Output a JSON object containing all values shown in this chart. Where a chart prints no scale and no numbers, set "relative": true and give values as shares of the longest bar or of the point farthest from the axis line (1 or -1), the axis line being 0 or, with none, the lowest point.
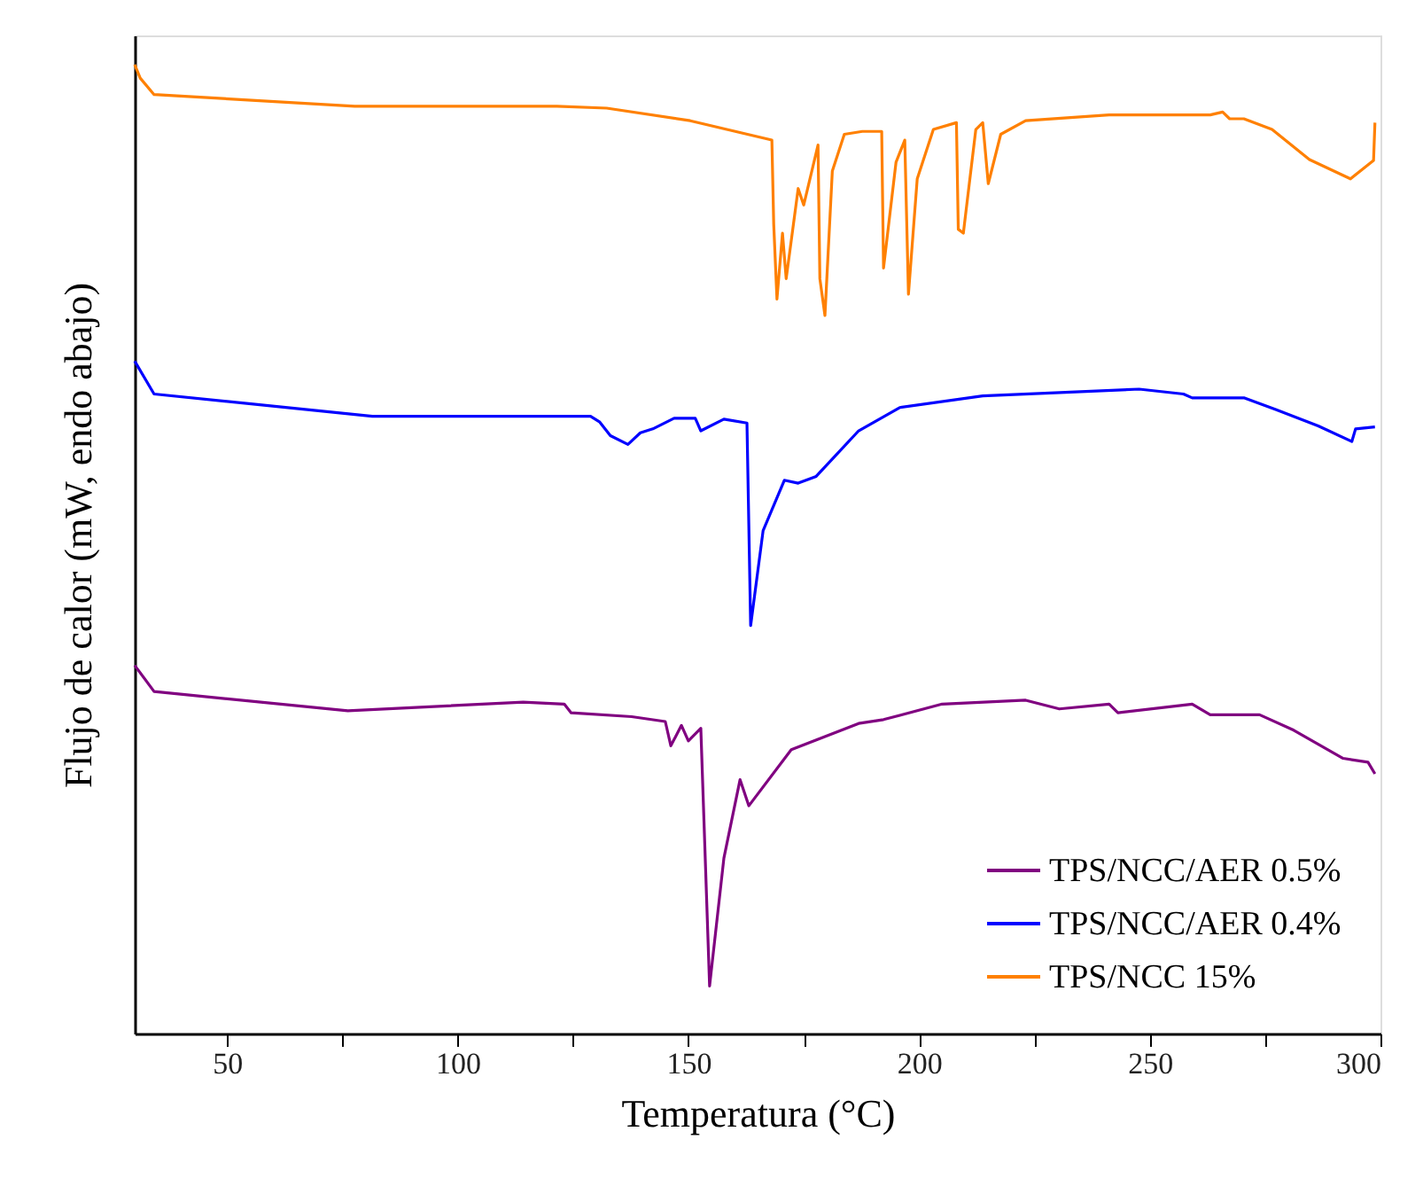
{
  "chart_data": {
    "type": "line",
    "xlabel": "Temperatura (°C)",
    "ylabel": "Flujo de calor (mW, endo abajo)",
    "relative": true,
    "xlim": [
      30,
      300
    ],
    "xticks": [
      50,
      {
        "value": 75,
        "label": null
      },
      100,
      {
        "value": 125,
        "label": null
      },
      150,
      {
        "value": 175,
        "label": null
      },
      200,
      {
        "value": 225,
        "label": null
      },
      250,
      {
        "value": 275,
        "label": null
      },
      300
    ],
    "tick_labels": "x",
    "grid": false,
    "legend": "bottom right",
    "marker": "none",
    "line_style": "solid",
    "series": [
      {
        "name": "TPS/NCC/AER 0.5%",
        "color": "#800080",
        "x": [
          30,
          34.2,
          76.2,
          114.2,
          123.1,
          124.6,
          137.7,
          145.0,
          146.2,
          148.5,
          150.0,
          152.7,
          154.6,
          157.7,
          161.2,
          163.1,
          172.3,
          186.9,
          192.3,
          205.0,
          223.1,
          230.4,
          241.2,
          243.1,
          259.2,
          263.1,
          273.8,
          281.2,
          291.9,
          297.3,
          298.8
        ],
        "values": [
          0.38,
          0.353,
          0.333,
          0.342,
          0.34,
          0.331,
          0.327,
          0.322,
          0.297,
          0.318,
          0.302,
          0.315,
          0.049,
          0.181,
          0.262,
          0.235,
          0.293,
          0.32,
          0.324,
          0.34,
          0.344,
          0.335,
          0.34,
          0.331,
          0.34,
          0.329,
          0.329,
          0.313,
          0.284,
          0.28,
          0.268
        ]
      },
      {
        "name": "TPS/NCC/AER 0.4%",
        "color": "#0000ff",
        "x": [
          30,
          34.2,
          81.5,
          128.8,
          130.8,
          133.1,
          136.9,
          139.6,
          142.3,
          146.9,
          151.5,
          152.7,
          157.7,
          162.7,
          163.5,
          166.2,
          170.8,
          173.8,
          177.7,
          186.9,
          195.8,
          213.8,
          247.7,
          257.3,
          259.2,
          270.4,
          277.3,
          286.5,
          293.8,
          294.6,
          298.8
        ],
        "values": [
          0.694,
          0.66,
          0.637,
          0.637,
          0.631,
          0.617,
          0.608,
          0.62,
          0.624,
          0.635,
          0.635,
          0.622,
          0.634,
          0.63,
          0.421,
          0.519,
          0.571,
          0.568,
          0.575,
          0.622,
          0.646,
          0.658,
          0.665,
          0.66,
          0.656,
          0.656,
          0.644,
          0.627,
          0.611,
          0.624,
          0.626
        ]
      },
      {
        "name": "TPS/NCC 15%",
        "color": "#ff8000",
        "x": [
          30,
          31.2,
          34.2,
          77.7,
          121.5,
          132.3,
          150.4,
          168.1,
          168.5,
          169.2,
          170.4,
          171.2,
          173.8,
          175.0,
          178.1,
          178.5,
          179.6,
          181.2,
          183.8,
          187.7,
          191.9,
          192.3,
          195.0,
          196.9,
          197.7,
          199.6,
          203.1,
          208.1,
          208.5,
          209.6,
          212.3,
          213.8,
          215.0,
          217.7,
          223.1,
          241.2,
          263.1,
          265.8,
          267.3,
          270.4,
          276.5,
          284.6,
          293.5,
          298.5,
          298.8
        ],
        "values": [
          1.0,
          0.986,
          0.969,
          0.957,
          0.957,
          0.955,
          0.942,
          0.922,
          0.835,
          0.758,
          0.826,
          0.779,
          0.872,
          0.855,
          0.917,
          0.779,
          0.741,
          0.89,
          0.928,
          0.931,
          0.931,
          0.79,
          0.899,
          0.922,
          0.763,
          0.882,
          0.933,
          0.94,
          0.83,
          0.826,
          0.933,
          0.94,
          0.877,
          0.928,
          0.942,
          0.948,
          0.948,
          0.951,
          0.944,
          0.944,
          0.933,
          0.902,
          0.882,
          0.901,
          0.94
        ]
      }
    ]
  }
}
